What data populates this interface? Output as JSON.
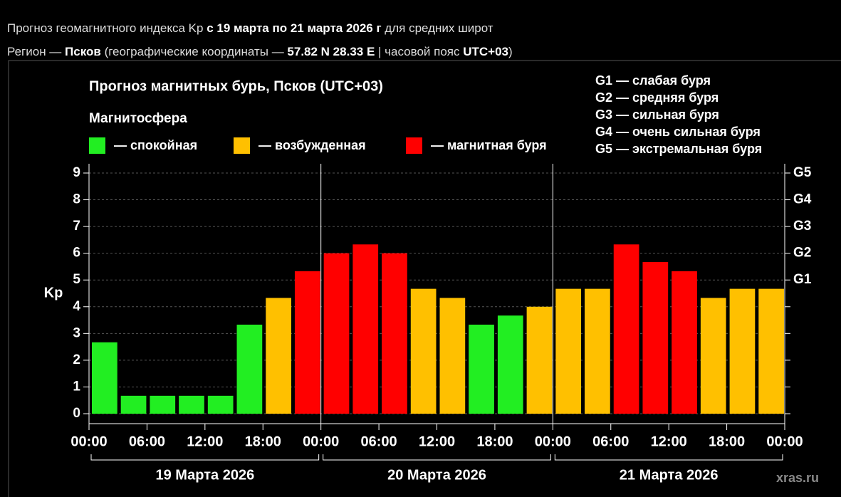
{
  "header": {
    "line1": [
      "Прогноз геомагнитного индекса Kp ",
      "с 19 марта по 21 марта 2026 г",
      " для средних широт"
    ],
    "line2": [
      "Регион — ",
      "Псков",
      " (географические координаты — ",
      "57.82 N 28.33 E",
      " | часовой пояс ",
      "UTC+03",
      ")"
    ]
  },
  "chart_data": {
    "type": "bar",
    "title": "Прогноз магнитных бурь, Псков (UTC+03)",
    "legend_title": "Магнитосфера",
    "legend": [
      {
        "label": "— спокойная",
        "color": "#22ee22"
      },
      {
        "label": "— возбужденная",
        "color": "#ffc000"
      },
      {
        "label": "— магнитная буря",
        "color": "#ff0000"
      }
    ],
    "storm_scale": [
      "G1 — слабая буря",
      "G2 — средняя буря",
      "G3 — сильная буря",
      "G4 — очень сильная буря",
      "G5 — экстремальная буря"
    ],
    "ylabel": "Kp",
    "x": [
      0,
      3,
      6,
      9,
      12,
      15,
      18,
      21,
      24,
      27,
      30,
      33,
      36,
      39,
      42,
      45,
      48,
      51,
      54,
      57,
      60,
      63,
      66,
      69
    ],
    "values": [
      2.67,
      0.67,
      0.67,
      0.67,
      0.67,
      3.33,
      4.33,
      5.33,
      6,
      6.33,
      6,
      4.67,
      4.33,
      3.33,
      3.67,
      4,
      4.67,
      4.67,
      6.33,
      5.67,
      5.33,
      4.33,
      4.67,
      4.67
    ],
    "colors": [
      "#22ee22",
      "#22ee22",
      "#22ee22",
      "#22ee22",
      "#22ee22",
      "#22ee22",
      "#ffc000",
      "#ff0000",
      "#ff0000",
      "#ff0000",
      "#ff0000",
      "#ffc000",
      "#ffc000",
      "#22ee22",
      "#22ee22",
      "#ffc000",
      "#ffc000",
      "#ffc000",
      "#ff0000",
      "#ff0000",
      "#ff0000",
      "#ffc000",
      "#ffc000",
      "#ffc000"
    ],
    "xlim": [
      0,
      72
    ],
    "xticks": [
      {
        "value": 0,
        "label": "00:00"
      },
      {
        "value": 6,
        "label": "06:00"
      },
      {
        "value": 12,
        "label": "12:00"
      },
      {
        "value": 18,
        "label": "18:00"
      },
      {
        "value": 24,
        "label": "00:00"
      },
      {
        "value": 30,
        "label": "06:00"
      },
      {
        "value": 36,
        "label": "12:00"
      },
      {
        "value": 42,
        "label": "18:00"
      },
      {
        "value": 48,
        "label": "00:00"
      },
      {
        "value": 54,
        "label": "06:00"
      },
      {
        "value": 60,
        "label": "12:00"
      },
      {
        "value": 66,
        "label": "18:00"
      },
      {
        "value": 72,
        "label": "00:00"
      }
    ],
    "days": [
      "19 Марта 2026",
      "20 Марта 2026",
      "21 Марта 2026"
    ],
    "ylim": [
      0,
      9
    ],
    "yticks": [
      0,
      1,
      2,
      3,
      4,
      5,
      6,
      7,
      8,
      9
    ],
    "y2lim": [
      0,
      9
    ],
    "y2ticks": [
      {
        "value": 5,
        "label": "G1"
      },
      {
        "value": 6,
        "label": "G2"
      },
      {
        "value": 7,
        "label": "G3"
      },
      {
        "value": 8,
        "label": "G4"
      },
      {
        "value": 9,
        "label": "G5"
      }
    ],
    "grid": true,
    "watermark": "xras.ru"
  }
}
